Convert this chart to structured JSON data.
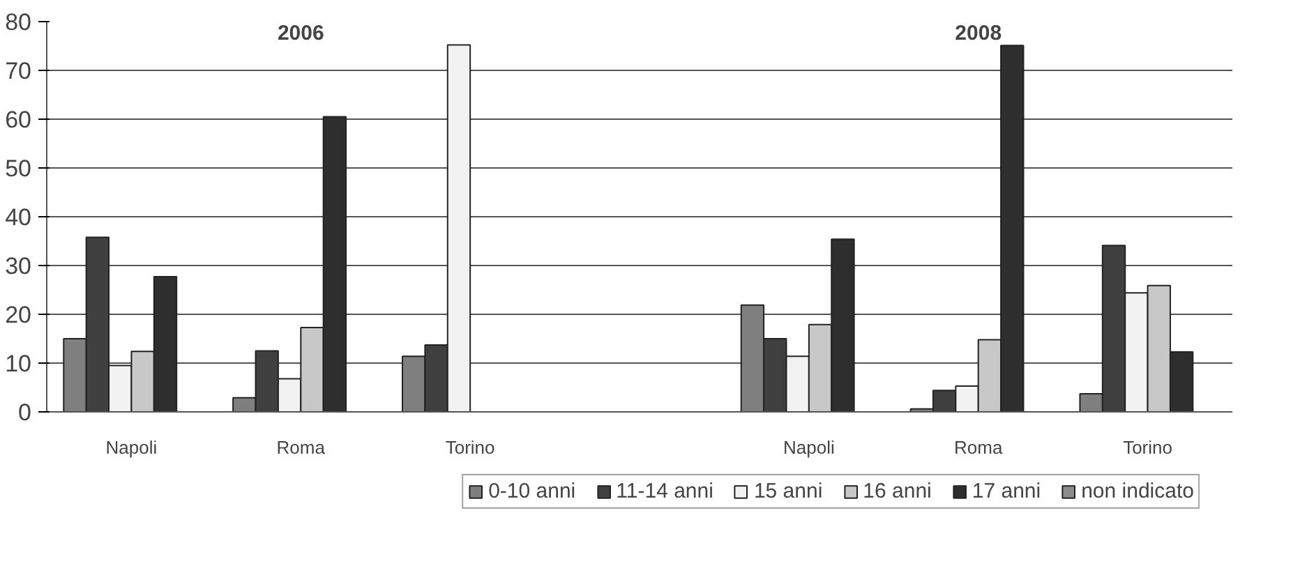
{
  "chart_data": {
    "type": "bar",
    "categories": [
      "Napoli",
      "Roma",
      "Torino",
      null,
      "Napoli",
      "Roma",
      "Torino"
    ],
    "series": [
      {
        "name": "0-10 anni",
        "color": "#7f7f7f",
        "values": [
          15,
          2.9,
          11.4,
          null,
          21.9,
          0.6,
          3.7
        ]
      },
      {
        "name": "11-14 anni",
        "color": "#404040",
        "values": [
          35.8,
          12.5,
          13.7,
          null,
          15,
          4.4,
          34.1
        ]
      },
      {
        "name": "15 anni",
        "color": "#f2f2f2",
        "values": [
          9.5,
          6.8,
          75.2,
          null,
          11.4,
          5.3,
          24.4
        ]
      },
      {
        "name": "16 anni",
        "color": "#c8c8c8",
        "values": [
          12.4,
          17.3,
          null,
          null,
          17.9,
          14.8,
          25.9
        ]
      },
      {
        "name": "17 anni",
        "color": "#2e2e2e",
        "values": [
          27.7,
          60.5,
          null,
          null,
          35.4,
          75.1,
          12.3
        ]
      },
      {
        "name": "non indicato",
        "color": "#8c8c8c",
        "values": [
          null,
          null,
          null,
          null,
          null,
          null,
          null
        ]
      }
    ],
    "annotations": [
      "2006",
      "2008"
    ],
    "ylim": [
      0,
      80
    ],
    "yticks": [
      0,
      10,
      20,
      30,
      40,
      50,
      60,
      70,
      80
    ],
    "grid": "y",
    "legend": "bottom"
  }
}
